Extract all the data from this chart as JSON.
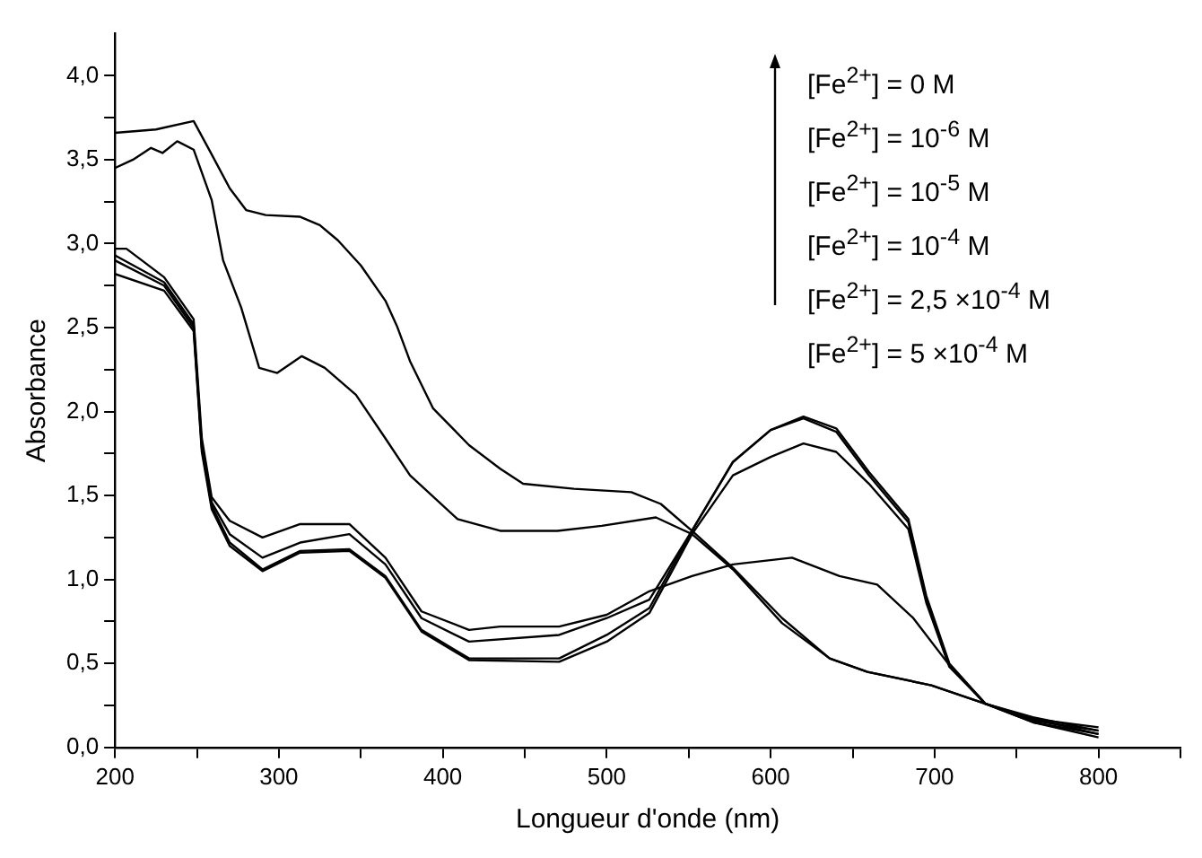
{
  "chart_data": {
    "type": "line",
    "xlabel": "Longueur d'onde (nm)",
    "ylabel": "Absorbance",
    "xlim": [
      200,
      850
    ],
    "xticks": [
      200,
      {
        "value": 250,
        "label": null
      },
      300,
      {
        "value": 350,
        "label": null
      },
      400,
      {
        "value": 450,
        "label": null
      },
      500,
      {
        "value": 550,
        "label": null
      },
      600,
      {
        "value": 650,
        "label": null
      },
      700,
      {
        "value": 750,
        "label": null
      },
      800,
      {
        "value": 850,
        "label": null
      }
    ],
    "ylim": [
      0,
      4.25
    ],
    "yticks": [
      {
        "value": 0,
        "label": "0,0"
      },
      {
        "value": 0.25,
        "label": null
      },
      {
        "value": 0.5,
        "label": "0,5"
      },
      {
        "value": 0.75,
        "label": null
      },
      {
        "value": 1,
        "label": "1,0"
      },
      {
        "value": 1.25,
        "label": null
      },
      {
        "value": 1.5,
        "label": "1,5"
      },
      {
        "value": 1.75,
        "label": null
      },
      {
        "value": 2,
        "label": "2,0"
      },
      {
        "value": 2.25,
        "label": null
      },
      {
        "value": 2.5,
        "label": "2,5"
      },
      {
        "value": 2.75,
        "label": null
      },
      {
        "value": 3,
        "label": "3,0"
      },
      {
        "value": 3.25,
        "label": null
      },
      {
        "value": 3.5,
        "label": "3,5"
      },
      {
        "value": 3.75,
        "label": null
      },
      {
        "value": 4,
        "label": "4,0"
      }
    ],
    "grid": false,
    "legend": false,
    "marker": "none",
    "line_style": "solid",
    "annotations": [
      "[Fe$^{2+}$] = 0 M",
      "[Fe$^{2+}$] = 10$^{-6}$ M",
      "[Fe$^{2+}$] = 10$^{-5}$ M",
      "[Fe$^{2+}$] = 10$^{-4}$ M",
      "[Fe$^{2+}$] = 2,5 ×10$^{-4}$ M",
      "[Fe$^{2+}$] = 5 ×10$^{-4}$ M"
    ],
    "series": [
      {
        "color": "#000000",
        "x": [
          200,
          225,
          248,
          258,
          270,
          280,
          292,
          313,
          325,
          336,
          350,
          365,
          372,
          380,
          394,
          416,
          435,
          449,
          480,
          515,
          533,
          552,
          577,
          607,
          636,
          659,
          698,
          731,
          760,
          800
        ],
        "values": [
          3.66,
          3.68,
          3.73,
          3.55,
          3.33,
          3.2,
          3.17,
          3.16,
          3.11,
          3.02,
          2.87,
          2.66,
          2.51,
          2.3,
          2.02,
          1.8,
          1.66,
          1.57,
          1.54,
          1.52,
          1.45,
          1.29,
          1.07,
          0.77,
          0.53,
          0.45,
          0.37,
          0.26,
          0.18,
          0.1
        ]
      },
      {
        "color": "#000000",
        "x": [
          200,
          211,
          222,
          229,
          238,
          248,
          259,
          266,
          277,
          288,
          299,
          314,
          328,
          347,
          365,
          380,
          409,
          435,
          470,
          497,
          530,
          552,
          577,
          607,
          636,
          659,
          698,
          731,
          760,
          800
        ],
        "values": [
          3.45,
          3.5,
          3.57,
          3.54,
          3.61,
          3.56,
          3.26,
          2.9,
          2.62,
          2.26,
          2.23,
          2.33,
          2.26,
          2.1,
          1.84,
          1.62,
          1.36,
          1.29,
          1.29,
          1.32,
          1.37,
          1.27,
          1.06,
          0.74,
          0.53,
          0.45,
          0.37,
          0.26,
          0.17,
          0.08
        ]
      },
      {
        "color": "#000000",
        "x": [
          200,
          207,
          230,
          248,
          253,
          259,
          270,
          290,
          313,
          343,
          365,
          387,
          416,
          435,
          471,
          500,
          526,
          552,
          577,
          613,
          642,
          665,
          687,
          709,
          731,
          760,
          800
        ],
        "values": [
          2.97,
          2.97,
          2.8,
          2.55,
          1.84,
          1.49,
          1.35,
          1.25,
          1.33,
          1.33,
          1.13,
          0.81,
          0.7,
          0.72,
          0.72,
          0.79,
          0.93,
          1.02,
          1.09,
          1.13,
          1.02,
          0.97,
          0.77,
          0.49,
          0.26,
          0.15,
          0.06
        ]
      },
      {
        "color": "#000000",
        "x": [
          200,
          230,
          248,
          253,
          259,
          270,
          290,
          313,
          343,
          365,
          387,
          416,
          471,
          500,
          526,
          552,
          577,
          600,
          620,
          640,
          660,
          684,
          695,
          709,
          731,
          760,
          800
        ],
        "values": [
          2.93,
          2.77,
          2.52,
          1.8,
          1.46,
          1.27,
          1.13,
          1.22,
          1.27,
          1.09,
          0.77,
          0.63,
          0.67,
          0.77,
          0.88,
          1.29,
          1.7,
          1.89,
          1.96,
          1.88,
          1.62,
          1.34,
          0.88,
          0.49,
          0.26,
          0.15,
          0.08
        ]
      },
      {
        "color": "#000000",
        "x": [
          200,
          230,
          248,
          253,
          259,
          270,
          290,
          313,
          343,
          365,
          387,
          416,
          471,
          500,
          526,
          552,
          577,
          600,
          620,
          640,
          660,
          684,
          695,
          709,
          731,
          760,
          800
        ],
        "values": [
          2.9,
          2.75,
          2.5,
          1.78,
          1.44,
          1.22,
          1.06,
          1.17,
          1.18,
          1.02,
          0.7,
          0.53,
          0.53,
          0.67,
          0.83,
          1.29,
          1.7,
          1.89,
          1.97,
          1.9,
          1.64,
          1.36,
          0.9,
          0.5,
          0.26,
          0.16,
          0.1
        ]
      },
      {
        "color": "#000000",
        "x": [
          200,
          230,
          248,
          253,
          259,
          270,
          290,
          313,
          343,
          365,
          387,
          416,
          471,
          500,
          526,
          552,
          577,
          600,
          620,
          640,
          660,
          684,
          695,
          709,
          731,
          760,
          800
        ],
        "values": [
          2.82,
          2.72,
          2.48,
          1.76,
          1.42,
          1.2,
          1.05,
          1.16,
          1.17,
          1.01,
          0.69,
          0.52,
          0.51,
          0.63,
          0.8,
          1.27,
          1.62,
          1.73,
          1.81,
          1.76,
          1.57,
          1.3,
          0.86,
          0.48,
          0.26,
          0.17,
          0.12
        ]
      }
    ]
  }
}
